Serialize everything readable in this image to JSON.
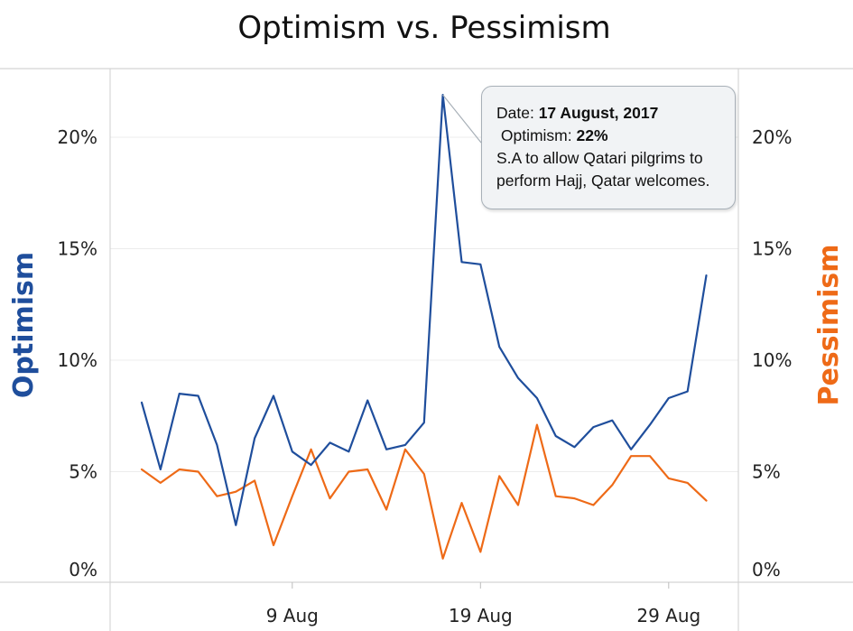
{
  "chart_data": {
    "type": "line",
    "title": "Optimism vs. Pessimism",
    "y_left_label": "Optimism",
    "y_right_label": "Pessimism",
    "y_left_ticks": [
      "0%",
      "5%",
      "10%",
      "15%",
      "20%"
    ],
    "y_right_ticks": [
      "0%",
      "5%",
      "10%",
      "15%",
      "20%"
    ],
    "ylim": [
      0,
      22.5
    ],
    "x_ticks": [
      "9 Aug",
      "19 Aug",
      "29 Aug"
    ],
    "x_tick_dates": [
      "2017-08-09",
      "2017-08-19",
      "2017-08-29"
    ],
    "x": [
      "2017-08-01",
      "2017-08-02",
      "2017-08-03",
      "2017-08-04",
      "2017-08-05",
      "2017-08-06",
      "2017-08-07",
      "2017-08-08",
      "2017-08-09",
      "2017-08-10",
      "2017-08-11",
      "2017-08-12",
      "2017-08-13",
      "2017-08-14",
      "2017-08-15",
      "2017-08-16",
      "2017-08-17",
      "2017-08-18",
      "2017-08-19",
      "2017-08-20",
      "2017-08-21",
      "2017-08-22",
      "2017-08-23",
      "2017-08-24",
      "2017-08-25",
      "2017-08-26",
      "2017-08-27",
      "2017-08-28",
      "2017-08-29",
      "2017-08-30",
      "2017-08-31"
    ],
    "grid": true,
    "series": [
      {
        "name": "Optimism",
        "axis": "left",
        "color": "#1f4e9c",
        "values": [
          8.1,
          5.1,
          8.5,
          8.4,
          6.2,
          2.6,
          6.5,
          8.4,
          5.9,
          5.3,
          6.3,
          5.9,
          8.2,
          6.0,
          6.2,
          7.2,
          21.9,
          14.4,
          14.3,
          10.6,
          9.2,
          8.3,
          6.6,
          6.1,
          7.0,
          7.3,
          6.0,
          7.1,
          8.3,
          8.6,
          13.8
        ]
      },
      {
        "name": "Pessimism",
        "axis": "right",
        "color": "#ee6a17",
        "values": [
          5.1,
          4.5,
          5.1,
          5.0,
          3.9,
          4.1,
          4.6,
          1.7,
          3.9,
          6.0,
          3.8,
          5.0,
          5.1,
          3.3,
          6.0,
          4.9,
          1.1,
          3.6,
          1.4,
          4.8,
          3.5,
          7.1,
          3.9,
          3.8,
          3.5,
          4.4,
          5.7,
          5.7,
          4.7,
          4.5,
          3.7
        ]
      }
    ],
    "tooltip": {
      "date_label": "Date:",
      "date_value": "17 August, 2017",
      "metric_label": "Optimism:",
      "metric_value": "22%",
      "text_line1": "S.A to allow Qatari pilgrims to",
      "text_line2": "perform Hajj, Qatar welcomes."
    }
  }
}
